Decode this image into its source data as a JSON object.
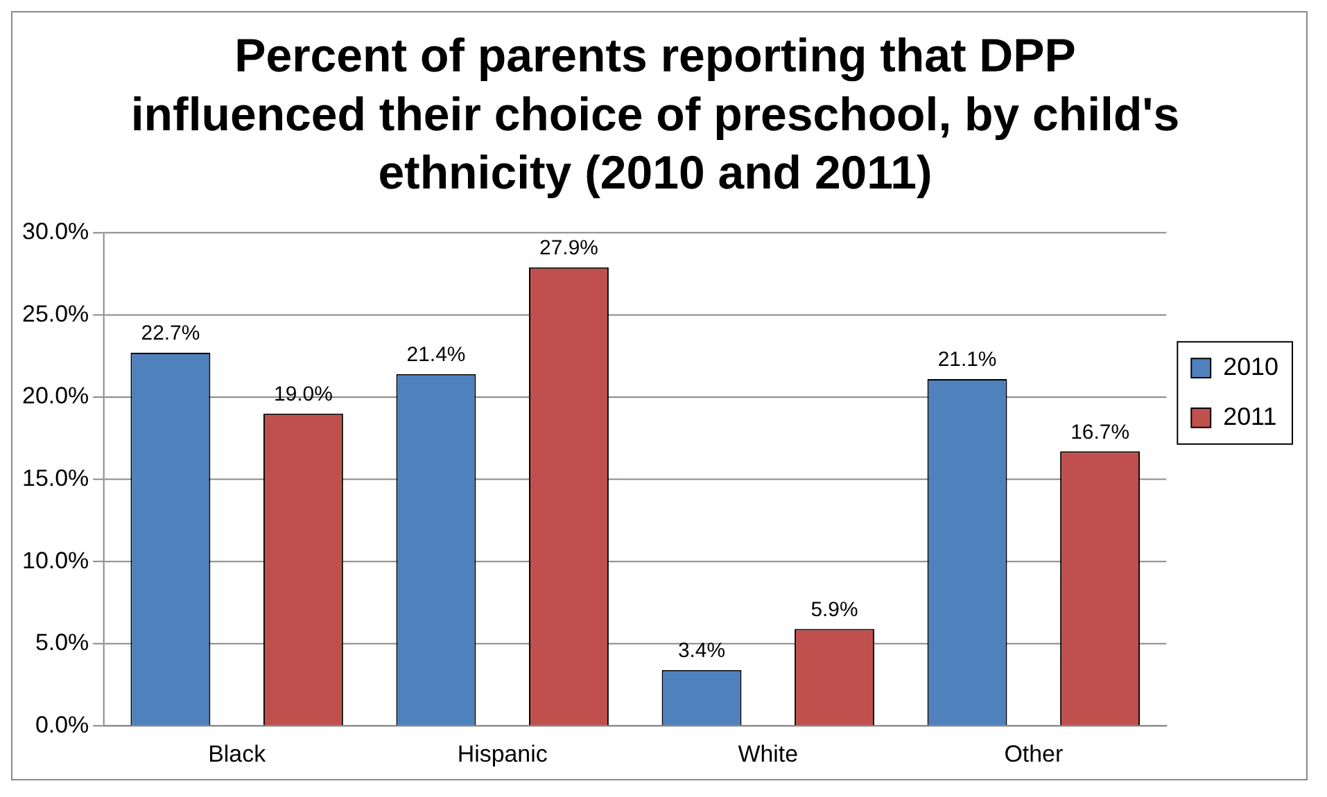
{
  "chart_data": {
    "type": "bar",
    "title": "Percent of parents reporting that DPP influenced their choice of preschool, by child's ethnicity (2010 and 2011)",
    "categories": [
      "Black",
      "Hispanic",
      "White",
      "Other"
    ],
    "series": [
      {
        "name": "2010",
        "color": "#4f81bd",
        "values": [
          22.7,
          21.4,
          3.4,
          21.1
        ],
        "value_labels": [
          "22.7%",
          "21.4%",
          "3.4%",
          "21.1%"
        ]
      },
      {
        "name": "2011",
        "color": "#c0504d",
        "values": [
          19.0,
          27.9,
          5.9,
          16.7
        ],
        "value_labels": [
          "19.0%",
          "27.9%",
          "5.9%",
          "16.7%"
        ]
      }
    ],
    "ylim": [
      0,
      30
    ],
    "yticks": [
      {
        "value": 0,
        "label": "0.0%"
      },
      {
        "value": 5,
        "label": "5.0%"
      },
      {
        "value": 10,
        "label": "10.0%"
      },
      {
        "value": 15,
        "label": "15.0%"
      },
      {
        "value": 20,
        "label": "20.0%"
      },
      {
        "value": 25,
        "label": "25.0%"
      },
      {
        "value": 30,
        "label": "30.0%"
      }
    ],
    "grid": "y",
    "legend": "right"
  }
}
